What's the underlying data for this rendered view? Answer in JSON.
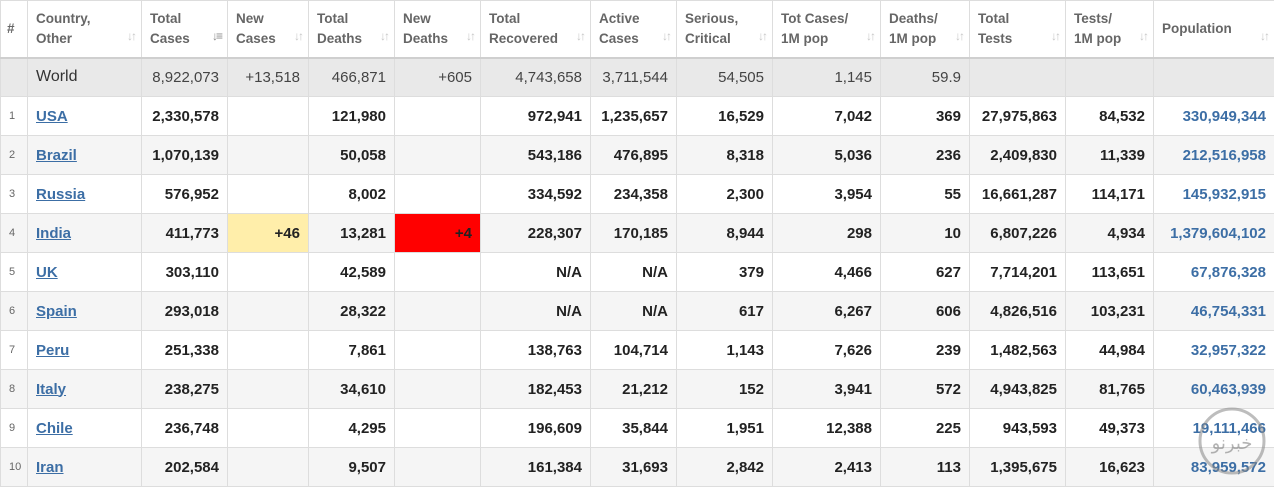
{
  "headers": [
    {
      "label": "#"
    },
    {
      "label": "Country, Other"
    },
    {
      "label": "Total Cases"
    },
    {
      "label": "New Cases"
    },
    {
      "label": "Total Deaths"
    },
    {
      "label": "New Deaths"
    },
    {
      "label": "Total Recovered"
    },
    {
      "label": "Active Cases"
    },
    {
      "label": "Serious, Critical"
    },
    {
      "label": "Tot Cases/ 1M pop"
    },
    {
      "label": "Deaths/ 1M pop"
    },
    {
      "label": "Total Tests"
    },
    {
      "label": "Tests/ 1M pop"
    },
    {
      "label": "Population"
    }
  ],
  "world": {
    "country": "World",
    "total_cases": "8,922,073",
    "new_cases": "+13,518",
    "total_deaths": "466,871",
    "new_deaths": "+605",
    "total_recovered": "4,743,658",
    "active_cases": "3,711,544",
    "serious": "54,505",
    "cases_per_m": "1,145",
    "deaths_per_m": "59.9",
    "total_tests": "",
    "tests_per_m": "",
    "population": ""
  },
  "rows": [
    {
      "idx": "1",
      "country": "USA",
      "total_cases": "2,330,578",
      "new_cases": "",
      "total_deaths": "121,980",
      "new_deaths": "",
      "total_recovered": "972,941",
      "active_cases": "1,235,657",
      "serious": "16,529",
      "cases_per_m": "7,042",
      "deaths_per_m": "369",
      "total_tests": "27,975,863",
      "tests_per_m": "84,532",
      "population": "330,949,344"
    },
    {
      "idx": "2",
      "country": "Brazil",
      "total_cases": "1,070,139",
      "new_cases": "",
      "total_deaths": "50,058",
      "new_deaths": "",
      "total_recovered": "543,186",
      "active_cases": "476,895",
      "serious": "8,318",
      "cases_per_m": "5,036",
      "deaths_per_m": "236",
      "total_tests": "2,409,830",
      "tests_per_m": "11,339",
      "population": "212,516,958"
    },
    {
      "idx": "3",
      "country": "Russia",
      "total_cases": "576,952",
      "new_cases": "",
      "total_deaths": "8,002",
      "new_deaths": "",
      "total_recovered": "334,592",
      "active_cases": "234,358",
      "serious": "2,300",
      "cases_per_m": "3,954",
      "deaths_per_m": "55",
      "total_tests": "16,661,287",
      "tests_per_m": "114,171",
      "population": "145,932,915"
    },
    {
      "idx": "4",
      "country": "India",
      "total_cases": "411,773",
      "new_cases": "+46",
      "total_deaths": "13,281",
      "new_deaths": "+4",
      "total_recovered": "228,307",
      "active_cases": "170,185",
      "serious": "8,944",
      "cases_per_m": "298",
      "deaths_per_m": "10",
      "total_tests": "6,807,226",
      "tests_per_m": "4,934",
      "population": "1,379,604,102"
    },
    {
      "idx": "5",
      "country": "UK",
      "total_cases": "303,110",
      "new_cases": "",
      "total_deaths": "42,589",
      "new_deaths": "",
      "total_recovered": "N/A",
      "active_cases": "N/A",
      "serious": "379",
      "cases_per_m": "4,466",
      "deaths_per_m": "627",
      "total_tests": "7,714,201",
      "tests_per_m": "113,651",
      "population": "67,876,328"
    },
    {
      "idx": "6",
      "country": "Spain",
      "total_cases": "293,018",
      "new_cases": "",
      "total_deaths": "28,322",
      "new_deaths": "",
      "total_recovered": "N/A",
      "active_cases": "N/A",
      "serious": "617",
      "cases_per_m": "6,267",
      "deaths_per_m": "606",
      "total_tests": "4,826,516",
      "tests_per_m": "103,231",
      "population": "46,754,331"
    },
    {
      "idx": "7",
      "country": "Peru",
      "total_cases": "251,338",
      "new_cases": "",
      "total_deaths": "7,861",
      "new_deaths": "",
      "total_recovered": "138,763",
      "active_cases": "104,714",
      "serious": "1,143",
      "cases_per_m": "7,626",
      "deaths_per_m": "239",
      "total_tests": "1,482,563",
      "tests_per_m": "44,984",
      "population": "32,957,322"
    },
    {
      "idx": "8",
      "country": "Italy",
      "total_cases": "238,275",
      "new_cases": "",
      "total_deaths": "34,610",
      "new_deaths": "",
      "total_recovered": "182,453",
      "active_cases": "21,212",
      "serious": "152",
      "cases_per_m": "3,941",
      "deaths_per_m": "572",
      "total_tests": "4,943,825",
      "tests_per_m": "81,765",
      "population": "60,463,939"
    },
    {
      "idx": "9",
      "country": "Chile",
      "total_cases": "236,748",
      "new_cases": "",
      "total_deaths": "4,295",
      "new_deaths": "",
      "total_recovered": "196,609",
      "active_cases": "35,844",
      "serious": "1,951",
      "cases_per_m": "12,388",
      "deaths_per_m": "225",
      "total_tests": "943,593",
      "tests_per_m": "49,373",
      "population": "19,111,466"
    },
    {
      "idx": "10",
      "country": "Iran",
      "total_cases": "202,584",
      "new_cases": "",
      "total_deaths": "9,507",
      "new_deaths": "",
      "total_recovered": "161,384",
      "active_cases": "31,693",
      "serious": "2,842",
      "cases_per_m": "2,413",
      "deaths_per_m": "113",
      "total_tests": "1,395,675",
      "tests_per_m": "16,623",
      "population": "83,959,572"
    }
  ],
  "watermark_text": "خبرنو",
  "colors": {
    "link": "#3c6ea5",
    "new_cases_highlight": "#ffeeaa",
    "new_deaths_highlight": "#ff0000",
    "world_row_bg": "#e9e9e9"
  }
}
